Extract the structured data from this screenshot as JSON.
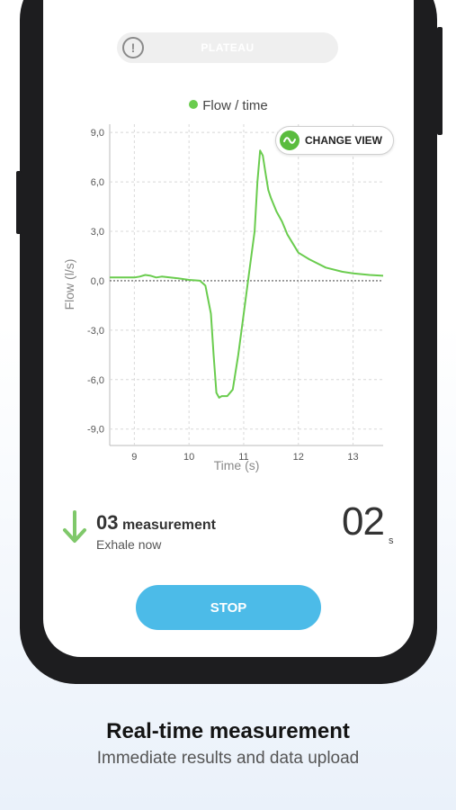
{
  "plateau": {
    "label": "PLATEAU"
  },
  "legend": {
    "label": "Flow / time",
    "color": "#6acc4e"
  },
  "change_view": {
    "label": "CHANGE VIEW",
    "icon": "wave-icon"
  },
  "measurement": {
    "number": "03",
    "word": "measurement",
    "instruction": "Exhale now",
    "icon": "arrow-down-icon"
  },
  "countdown": {
    "value": "02",
    "unit": "s"
  },
  "stop_button": {
    "label": "STOP",
    "color": "#4cbbe8"
  },
  "promo": {
    "headline": "Real-time measurement",
    "subline": "Immediate results and data upload"
  },
  "chart_data": {
    "type": "line",
    "xlabel": "Time (s)",
    "ylabel": "Flow (l/s)",
    "x_ticks": [
      "9",
      "10",
      "11",
      "12",
      "13"
    ],
    "y_ticks": [
      "9,0",
      "6,0",
      "3,0",
      "0,0",
      "-3,0",
      "-6,0",
      "-9,0"
    ],
    "xlim": [
      8.55,
      13.55
    ],
    "ylim": [
      -10,
      9.5
    ],
    "grid": true,
    "series": [
      {
        "color": "#6acc4e",
        "x": [
          8.55,
          9.0,
          9.1,
          9.2,
          9.3,
          9.4,
          9.5,
          9.8,
          10.0,
          10.2,
          10.3,
          10.4,
          10.45,
          10.5,
          10.55,
          10.6,
          10.7,
          10.8,
          10.9,
          11.0,
          11.1,
          11.2,
          11.25,
          11.3,
          11.35,
          11.4,
          11.45,
          11.5,
          11.6,
          11.7,
          11.8,
          12.0,
          12.2,
          12.5,
          12.8,
          13.0,
          13.3,
          13.55
        ],
        "y": [
          0.2,
          0.2,
          0.25,
          0.35,
          0.3,
          0.2,
          0.25,
          0.15,
          0.05,
          0.0,
          -0.3,
          -2.0,
          -4.5,
          -6.8,
          -7.1,
          -7.0,
          -7.0,
          -6.6,
          -4.5,
          -2.0,
          0.5,
          3.0,
          6.0,
          7.9,
          7.6,
          6.5,
          5.5,
          5.0,
          4.2,
          3.6,
          2.8,
          1.7,
          1.3,
          0.8,
          0.55,
          0.45,
          0.35,
          0.3
        ]
      }
    ],
    "zero_line": {
      "style": "dotted",
      "color": "#555555"
    }
  }
}
